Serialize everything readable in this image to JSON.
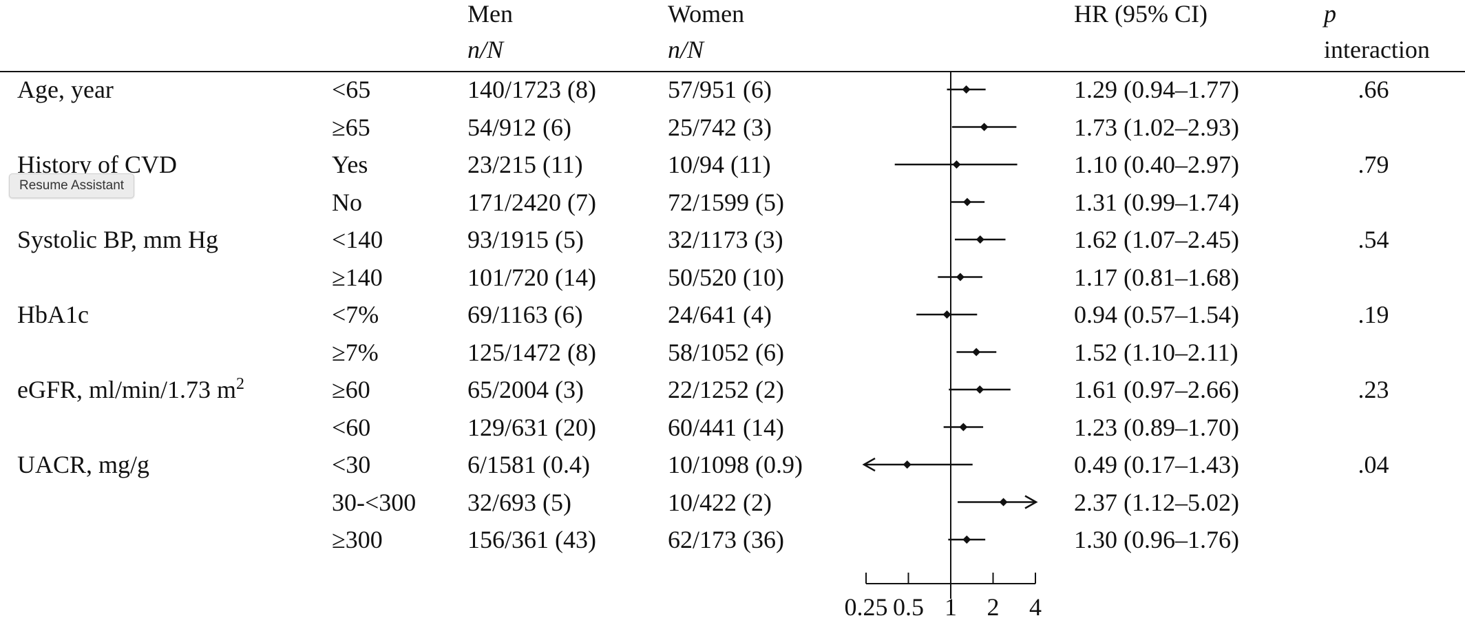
{
  "header": {
    "men_label": "Men",
    "men_sub": "n/N",
    "women_label": "Women",
    "women_sub": "n/N",
    "hr_label": "HR (95% CI)",
    "p_label": "p",
    "p_sub": "interaction"
  },
  "overlay": {
    "resume_assistant": "Resume Assistant"
  },
  "chart_data": {
    "type": "forest",
    "x_axis": {
      "scale": "log",
      "ticks": [
        0.25,
        0.5,
        1,
        2,
        4
      ],
      "tick_labels": [
        "0.25",
        "0.5",
        "1",
        "2",
        "4"
      ],
      "xlim": [
        0.25,
        4
      ],
      "reference_line": 1
    },
    "groups": [
      {
        "label": "Age, year",
        "p_interaction": ".66"
      },
      {
        "label": "History of CVD",
        "p_interaction": ".79"
      },
      {
        "label": "Systolic BP, mm Hg",
        "p_interaction": ".54"
      },
      {
        "label": "HbA1c",
        "p_interaction": ".19"
      },
      {
        "label": "eGFR, ml/min/1.73 m",
        "label_sup": "2",
        "p_interaction": ".23"
      },
      {
        "label": "UACR, mg/g",
        "p_interaction": ".04"
      }
    ],
    "rows": [
      {
        "group": 0,
        "subgroup": "<65",
        "men": "140/1723 (8)",
        "women": "57/951 (6)",
        "hr": 1.29,
        "lo": 0.94,
        "hi": 1.77,
        "hr_text": "1.29 (0.94–1.77)"
      },
      {
        "group": 0,
        "subgroup": "≥65",
        "men": "54/912 (6)",
        "women": "25/742 (3)",
        "hr": 1.73,
        "lo": 1.02,
        "hi": 2.93,
        "hr_text": "1.73 (1.02–2.93)"
      },
      {
        "group": 1,
        "subgroup": "Yes",
        "men": "23/215 (11)",
        "women": "10/94 (11)",
        "hr": 1.1,
        "lo": 0.4,
        "hi": 2.97,
        "hr_text": "1.10 (0.40–2.97)"
      },
      {
        "group": 1,
        "subgroup": "No",
        "men": "171/2420 (7)",
        "women": "72/1599 (5)",
        "hr": 1.31,
        "lo": 0.99,
        "hi": 1.74,
        "hr_text": "1.31 (0.99–1.74)"
      },
      {
        "group": 2,
        "subgroup": "<140",
        "men": "93/1915 (5)",
        "women": "32/1173 (3)",
        "hr": 1.62,
        "lo": 1.07,
        "hi": 2.45,
        "hr_text": "1.62 (1.07–2.45)"
      },
      {
        "group": 2,
        "subgroup": "≥140",
        "men": "101/720 (14)",
        "women": "50/520 (10)",
        "hr": 1.17,
        "lo": 0.81,
        "hi": 1.68,
        "hr_text": "1.17 (0.81–1.68)"
      },
      {
        "group": 3,
        "subgroup": "<7%",
        "men": "69/1163 (6)",
        "women": "24/641 (4)",
        "hr": 0.94,
        "lo": 0.57,
        "hi": 1.54,
        "hr_text": "0.94 (0.57–1.54)"
      },
      {
        "group": 3,
        "subgroup": "≥7%",
        "men": "125/1472 (8)",
        "women": "58/1052 (6)",
        "hr": 1.52,
        "lo": 1.1,
        "hi": 2.11,
        "hr_text": "1.52 (1.10–2.11)"
      },
      {
        "group": 4,
        "subgroup": "≥60",
        "men": "65/2004 (3)",
        "women": "22/1252 (2)",
        "hr": 1.61,
        "lo": 0.97,
        "hi": 2.66,
        "hr_text": "1.61 (0.97–2.66)"
      },
      {
        "group": 4,
        "subgroup": "<60",
        "men": "129/631 (20)",
        "women": "60/441 (14)",
        "hr": 1.23,
        "lo": 0.89,
        "hi": 1.7,
        "hr_text": "1.23 (0.89–1.70)"
      },
      {
        "group": 5,
        "subgroup": "<30",
        "men": "6/1581 (0.4)",
        "women": "10/1098 (0.9)",
        "hr": 0.49,
        "lo": 0.17,
        "hi": 1.43,
        "hr_text": "0.49 (0.17–1.43)"
      },
      {
        "group": 5,
        "subgroup": "30-<300",
        "men": "32/693 (5)",
        "women": "10/422 (2)",
        "hr": 2.37,
        "lo": 1.12,
        "hi": 5.02,
        "hr_text": "2.37 (1.12–5.02)"
      },
      {
        "group": 5,
        "subgroup": "≥300",
        "men": "156/361 (43)",
        "women": "62/173 (36)",
        "hr": 1.3,
        "lo": 0.96,
        "hi": 1.76,
        "hr_text": "1.30 (0.96–1.76)"
      }
    ]
  }
}
